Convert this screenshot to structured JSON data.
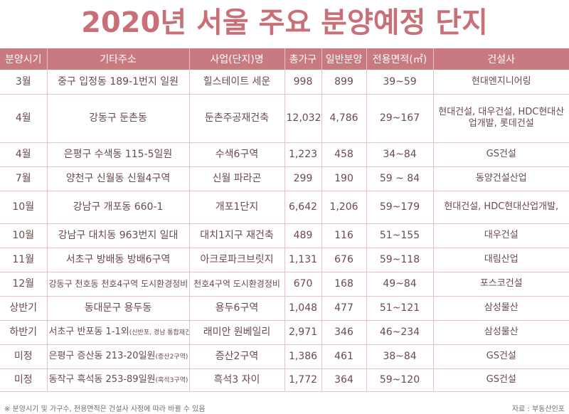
{
  "title": "2020년 서울 주요 분양예정 단지",
  "headers": [
    "분양시기",
    "기타주소",
    "사업(단지)명",
    "총가구",
    "일반분양",
    "전용면적(㎡)",
    "건설사"
  ],
  "rows": [
    {
      "period": "3월",
      "address": "중구 입정동 189-1번지 일원",
      "address_note": "",
      "project": "힐스테이트 세운",
      "total": "998",
      "general": "899",
      "area": "39~59",
      "builder": "현대엔지니어링"
    },
    {
      "period": "4월",
      "address": "강동구 둔촌동",
      "address_note": "",
      "project": "둔촌주공재건축",
      "total": "12,032",
      "general": "4,786",
      "area": "29~167",
      "builder": "현대건설, 대우건설, HDC현대산업개발, 롯데건설"
    },
    {
      "period": "4월",
      "address": "은평구 수색동 115-5일원",
      "address_note": "",
      "project": "수색6구역",
      "total": "1,223",
      "general": "458",
      "area": "34~84",
      "builder": "GS건설"
    },
    {
      "period": "7월",
      "address": "양천구 신월동 신월4구역",
      "address_note": "",
      "project": "신월 파라곤",
      "total": "299",
      "general": "190",
      "area": "59 ~ 84",
      "builder": "동양건설산업"
    },
    {
      "period": "10월",
      "address": "강남구 개포동 660-1",
      "address_note": "",
      "project": "개포1단지",
      "total": "6,642",
      "general": "1,206",
      "area": "59~179",
      "builder": "현대건설, HDC현대산업개발,"
    },
    {
      "period": "10월",
      "address": "강남구 대치동 963번지 일대",
      "address_note": "",
      "project": "대치1지구 재건축",
      "total": "489",
      "general": "116",
      "area": "51~155",
      "builder": "대우건설"
    },
    {
      "period": "11월",
      "address": "서초구 방배동 방배6구역",
      "address_note": "",
      "project": "아크로파크브릿지",
      "total": "1,131",
      "general": "676",
      "area": "59~118",
      "builder": "대림산업"
    },
    {
      "period": "12월",
      "address": "강동구 천호동 천호4구역 도시환경정비",
      "address_note": "",
      "project": "천호4구역 도시환경정비",
      "total": "670",
      "general": "168",
      "area": "49~84",
      "builder": "포스코건설"
    },
    {
      "period": "상반기",
      "address": "동대문구 용두동",
      "address_note": "",
      "project": "용두6구역",
      "total": "1,048",
      "general": "477",
      "area": "51~121",
      "builder": "삼성물산"
    },
    {
      "period": "하반기",
      "address": "서초구 반포동 1-1외",
      "address_note": "(신반포, 경남 통합재건축)",
      "project": "래미안 원베일리",
      "total": "2,971",
      "general": "346",
      "area": "46~234",
      "builder": "삼성물산"
    },
    {
      "period": "미정",
      "address": "은평구 증산동 213-20일원",
      "address_note": "(증산2구역)",
      "project": "증산2구역",
      "total": "1,386",
      "general": "461",
      "area": "38~84",
      "builder": "GS건설"
    },
    {
      "period": "미정",
      "address": "동작구 흑석동 253-89일원",
      "address_note": "(흑석3구역)",
      "project": "흑석3 자이",
      "total": "1,772",
      "general": "364",
      "area": "59~120",
      "builder": "GS건설"
    }
  ],
  "footer_note": "※ 분양시기 및 가구수, 전용면적은 건설사 사정에 따라 바뀔 수 있음",
  "source": "자료 : 부동산인포",
  "colors": {
    "accent": "#c86f78",
    "header_bg": "#c97a81",
    "grid": "#e7c3c6",
    "text": "#6b4a4d"
  }
}
